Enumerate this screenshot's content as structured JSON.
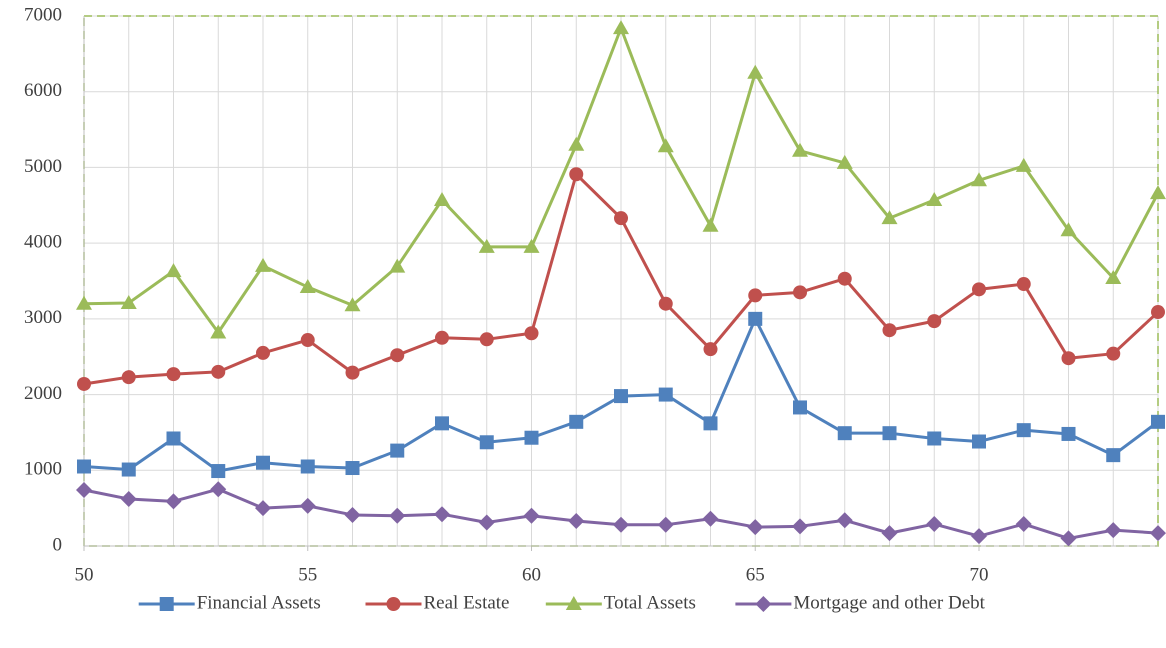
{
  "chart_data": {
    "type": "line",
    "x": [
      50,
      51,
      52,
      53,
      54,
      55,
      56,
      57,
      58,
      59,
      60,
      61,
      62,
      63,
      64,
      65,
      66,
      67,
      68,
      69,
      70,
      71,
      72,
      73,
      74
    ],
    "xlim": [
      50,
      74
    ],
    "xticks": [
      50,
      55,
      60,
      65,
      70
    ],
    "ylim": [
      0,
      7000
    ],
    "yticks": [
      0,
      1000,
      2000,
      3000,
      4000,
      5000,
      6000,
      7000
    ],
    "grid": true,
    "legend": "bottom",
    "series": [
      {
        "name": "Financial Assets",
        "color": "#4f81bd",
        "marker": "square",
        "values": [
          1050,
          1010,
          1420,
          990,
          1100,
          1050,
          1030,
          1260,
          1620,
          1370,
          1430,
          1640,
          1980,
          2000,
          1620,
          3000,
          1830,
          1490,
          1490,
          1420,
          1380,
          1530,
          1480,
          1200,
          1640
        ]
      },
      {
        "name": "Real Estate",
        "color": "#c0504d",
        "marker": "circle",
        "values": [
          2140,
          2230,
          2270,
          2300,
          2550,
          2720,
          2290,
          2520,
          2750,
          2730,
          2810,
          4910,
          4330,
          3200,
          2600,
          3310,
          3350,
          3530,
          2850,
          2970,
          3390,
          3460,
          2480,
          2540,
          3090
        ]
      },
      {
        "name": "Total Assets",
        "color": "#9bbb59",
        "marker": "triangle",
        "values": [
          3200,
          3210,
          3630,
          2820,
          3700,
          3420,
          3180,
          3690,
          4570,
          3950,
          3950,
          5300,
          6840,
          5280,
          4230,
          6250,
          5220,
          5060,
          4330,
          4570,
          4830,
          5020,
          4170,
          3540,
          4660
        ]
      },
      {
        "name": "Mortgage and other Debt",
        "color": "#8064a2",
        "marker": "diamond",
        "values": [
          740,
          620,
          590,
          750,
          500,
          530,
          410,
          400,
          420,
          310,
          400,
          330,
          280,
          280,
          360,
          250,
          260,
          340,
          170,
          290,
          130,
          290,
          100,
          210,
          170
        ]
      }
    ]
  }
}
